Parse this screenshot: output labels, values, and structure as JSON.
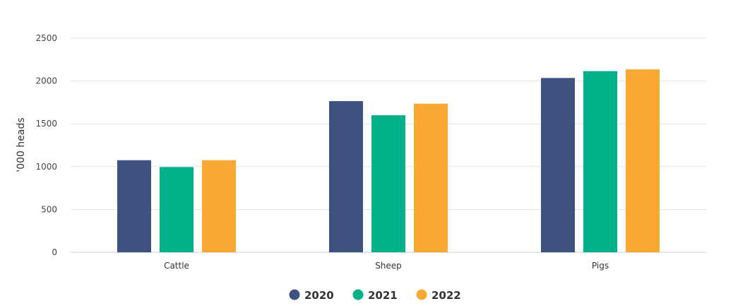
{
  "chart_data": {
    "type": "bar",
    "categories": [
      "Cattle",
      "Sheep",
      "Pigs"
    ],
    "series": [
      {
        "name": "2020",
        "values": [
          1075,
          1765,
          2035
        ]
      },
      {
        "name": "2021",
        "values": [
          995,
          1600,
          2115
        ]
      },
      {
        "name": "2022",
        "values": [
          1075,
          1735,
          2135
        ]
      }
    ],
    "title": "",
    "xlabel": "",
    "ylabel": "'000 heads",
    "ylim": [
      0,
      2500
    ],
    "yticks": [
      "0",
      "500",
      "1000",
      "1500",
      "2000",
      "2500"
    ],
    "grid": true,
    "legend_position": "bottom-center"
  },
  "colors": {
    "2020": "#3e5280",
    "2021": "#00b089",
    "2022": "#f8a935"
  }
}
